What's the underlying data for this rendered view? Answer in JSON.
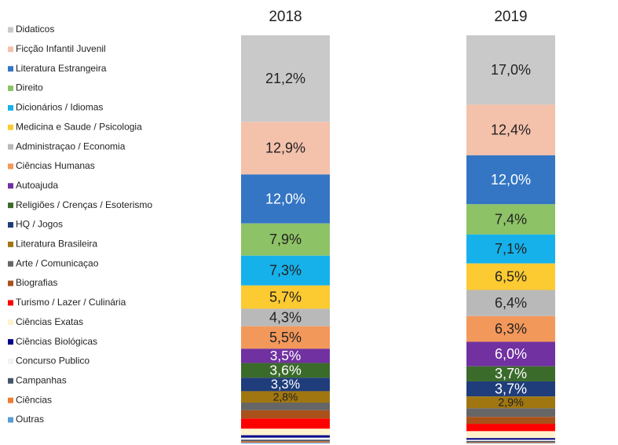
{
  "chart_data": {
    "type": "stacked_bar",
    "categories": [
      "2018",
      "2019"
    ],
    "ylim": [
      0,
      100
    ],
    "series": [
      {
        "name": "Didaticos",
        "color": "#c9c9c9",
        "values": [
          21.2,
          17.0
        ],
        "value_labels": [
          "21,2%",
          "17,0%"
        ]
      },
      {
        "name": "Ficção Infantil Juvenil",
        "color": "#f4c1ab",
        "values": [
          12.9,
          12.4
        ],
        "value_labels": [
          "12,9%",
          "12,4%"
        ]
      },
      {
        "name": "Literatura Estrangeira",
        "color": "#3476c4",
        "values": [
          12.0,
          12.0
        ],
        "value_labels": [
          "12,0%",
          "12,0%"
        ]
      },
      {
        "name": "Direito",
        "color": "#8dc266",
        "values": [
          7.9,
          7.4
        ],
        "value_labels": [
          "7,9%",
          "7,4%"
        ]
      },
      {
        "name": "Dicionários / Idiomas",
        "color": "#16b1ea",
        "values": [
          7.3,
          7.1
        ],
        "value_labels": [
          "7,3%",
          "7,1%"
        ]
      },
      {
        "name": "Medicina e Saude / Psicologia",
        "color": "#fcca31",
        "values": [
          5.7,
          6.5
        ],
        "value_labels": [
          "5,7%",
          "6,5%"
        ]
      },
      {
        "name": "Administraçao / Economia",
        "color": "#b9b9b9",
        "values": [
          4.3,
          6.4
        ],
        "value_labels": [
          "4,3%",
          "6,4%"
        ]
      },
      {
        "name": "Ciências Humanas",
        "color": "#f3985b",
        "values": [
          5.5,
          6.3
        ],
        "value_labels": [
          "5,5%",
          "6,3%"
        ]
      },
      {
        "name": "Autoajuda",
        "color": "#7131a1",
        "values": [
          3.5,
          6.0
        ],
        "value_labels": [
          "3,5%",
          "6,0%"
        ]
      },
      {
        "name": "Religiões / Crenças / Esoterismo",
        "color": "#3b6b2b",
        "values": [
          3.6,
          3.7
        ],
        "value_labels": [
          "3,6%",
          "3,7%"
        ]
      },
      {
        "name": "HQ / Jogos",
        "color": "#1f3d7a",
        "values": [
          3.3,
          3.7
        ],
        "value_labels": [
          "3,3%",
          "3,7%"
        ]
      },
      {
        "name": "Literatura Brasileira",
        "color": "#a07610",
        "values": [
          2.8,
          2.9
        ],
        "value_labels": [
          "2,8%",
          "2,9%"
        ]
      },
      {
        "name": "Arte / Comunicaçao",
        "color": "#666666",
        "values": [
          1.9,
          2.1
        ]
      },
      {
        "name": "Biografias",
        "color": "#a9511b",
        "values": [
          2.0,
          1.7
        ]
      },
      {
        "name": "Turismo / Lazer / Culinária",
        "color": "#ff0000",
        "values": [
          2.5,
          1.8
        ]
      },
      {
        "name": "Ciências Exatas",
        "color": "#fff2cc",
        "values": [
          1.6,
          1.7
        ]
      },
      {
        "name": "Ciências Biológicas",
        "color": "#00008b",
        "values": [
          0.6,
          0.4
        ]
      },
      {
        "name": "Concurso Publico",
        "color": "#f2f2f2",
        "values": [
          0.5,
          0.3
        ]
      },
      {
        "name": "Campanhas",
        "color": "#44546a",
        "values": [
          0.4,
          0.3
        ]
      },
      {
        "name": "Ciências",
        "color": "#ed7d31",
        "values": [
          0.3,
          0.2
        ]
      },
      {
        "name": "Outras",
        "color": "#5b9bd5",
        "values": [
          0.2,
          0.1
        ]
      }
    ]
  }
}
